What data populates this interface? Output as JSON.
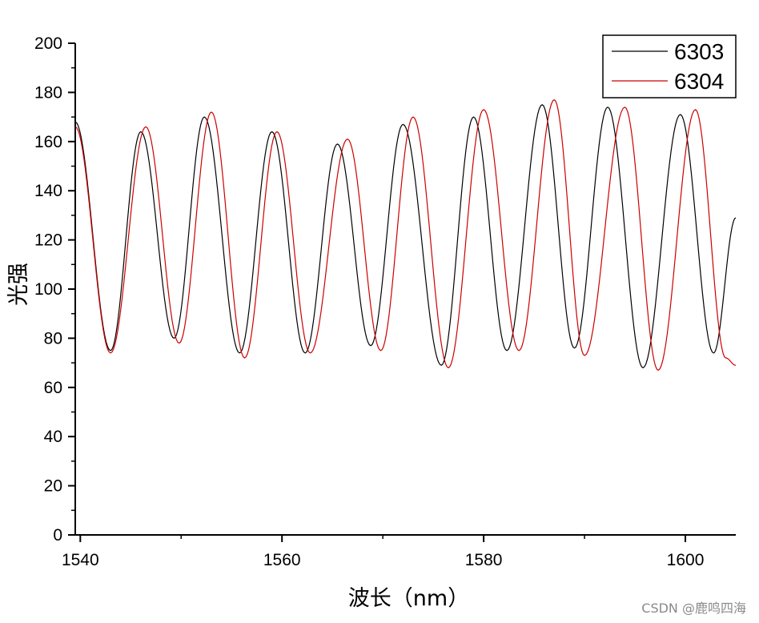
{
  "chart_data": {
    "type": "line",
    "xlabel": "波长（nm）",
    "ylabel": "光强",
    "xlim": [
      1539.5,
      1605
    ],
    "ylim": [
      0,
      200
    ],
    "x_major_ticks": [
      1540,
      1560,
      1580,
      1600
    ],
    "y_major_ticks": [
      0,
      20,
      40,
      60,
      80,
      100,
      120,
      140,
      160,
      180,
      200
    ],
    "legend": "top-right",
    "series": [
      {
        "name": "6303",
        "color": "#000000",
        "points": [
          [
            1539.5,
            168
          ],
          [
            1543.0,
            75
          ],
          [
            1546.0,
            164
          ],
          [
            1549.3,
            80
          ],
          [
            1552.3,
            170
          ],
          [
            1555.8,
            74
          ],
          [
            1559.0,
            164
          ],
          [
            1562.3,
            74
          ],
          [
            1565.5,
            159
          ],
          [
            1568.8,
            77
          ],
          [
            1572.0,
            167
          ],
          [
            1575.8,
            69
          ],
          [
            1579.0,
            170
          ],
          [
            1582.3,
            75
          ],
          [
            1585.8,
            175
          ],
          [
            1589.0,
            76
          ],
          [
            1592.3,
            174
          ],
          [
            1595.8,
            68
          ],
          [
            1599.5,
            171
          ],
          [
            1602.8,
            74
          ],
          [
            1605.0,
            129
          ]
        ]
      },
      {
        "name": "6304",
        "color": "#cc0000",
        "points": [
          [
            1539.5,
            166
          ],
          [
            1543.0,
            74
          ],
          [
            1546.5,
            166
          ],
          [
            1549.8,
            78
          ],
          [
            1553.0,
            172
          ],
          [
            1556.3,
            72
          ],
          [
            1559.5,
            164
          ],
          [
            1562.8,
            74
          ],
          [
            1566.5,
            161
          ],
          [
            1569.8,
            75
          ],
          [
            1573.0,
            170
          ],
          [
            1576.5,
            68
          ],
          [
            1580.0,
            173
          ],
          [
            1583.5,
            75
          ],
          [
            1587.0,
            177
          ],
          [
            1590.0,
            73
          ],
          [
            1594.0,
            174
          ],
          [
            1597.3,
            67
          ],
          [
            1601.0,
            173
          ],
          [
            1604.0,
            72
          ],
          [
            1605.0,
            69
          ]
        ]
      }
    ]
  },
  "watermark": "CSDN @鹿鸣四海"
}
